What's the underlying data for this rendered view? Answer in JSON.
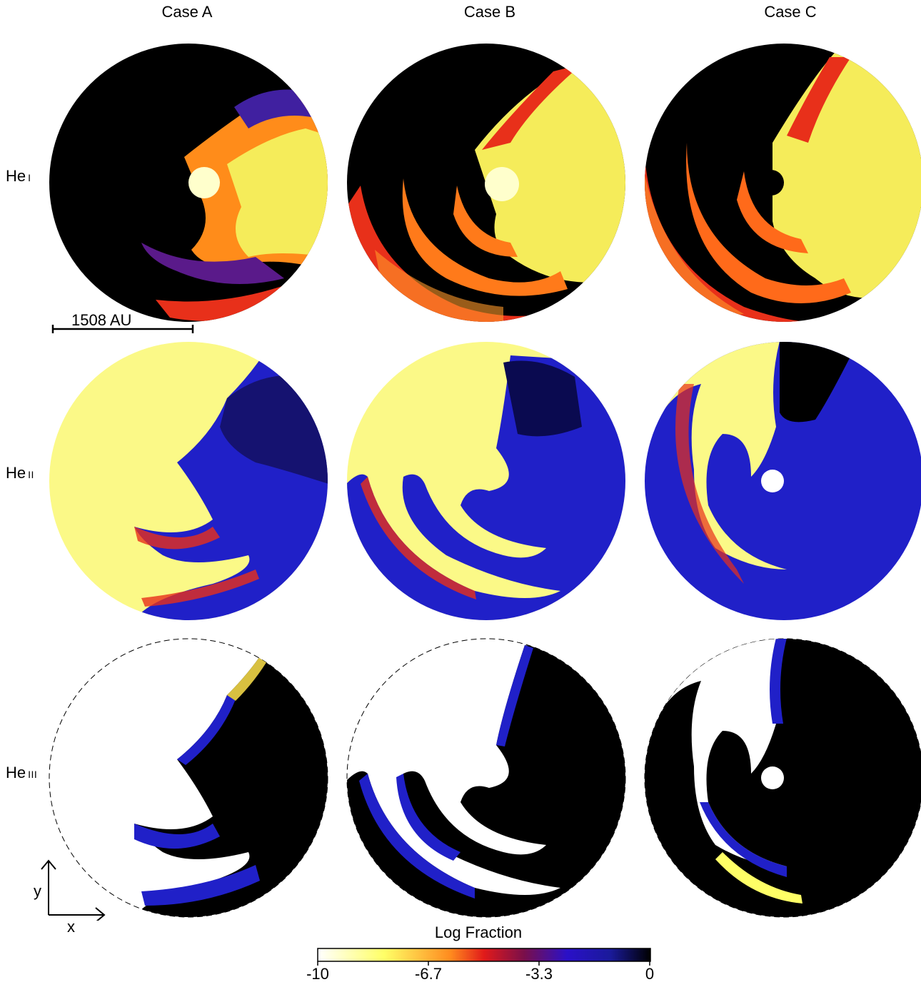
{
  "columns": [
    "Case A",
    "Case B",
    "Case C"
  ],
  "rows": [
    {
      "base": "He",
      "ion": "I"
    },
    {
      "base": "He",
      "ion": "II"
    },
    {
      "base": "He",
      "ion": "III"
    }
  ],
  "scale_bar": {
    "label": "1508 AU"
  },
  "colorbar": {
    "title": "Log Fraction",
    "ticks": [
      "-10",
      "-6.7",
      "-3.3",
      "0"
    ],
    "colors": [
      "#ffffff",
      "#ffff66",
      "#ff8a1e",
      "#e11a1a",
      "#7a0f4a",
      "#2a10c8",
      "#1a1a9a",
      "#000000"
    ]
  },
  "axes": {
    "x": "x",
    "y": "y"
  },
  "palette": {
    "black": "#000000",
    "yellow": "#fbf987",
    "blue": "#2020c8",
    "red": "#e8301a",
    "orange": "#ff8c1a"
  }
}
